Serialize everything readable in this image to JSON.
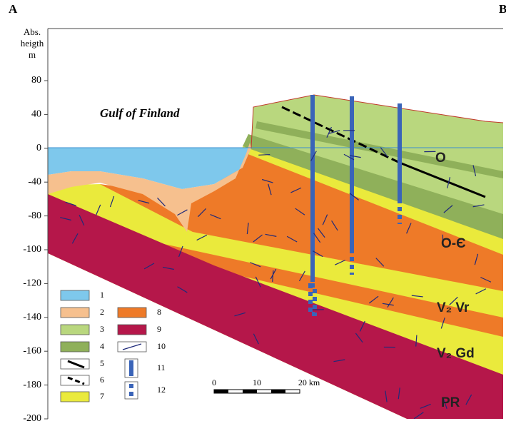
{
  "header": {
    "left": "A",
    "right": "B"
  },
  "axis": {
    "title": [
      "Abs.",
      "heigth",
      "m"
    ],
    "ticks": [
      80,
      40,
      0,
      -40,
      -80,
      -100,
      -120,
      -140,
      -160,
      -180,
      -200
    ]
  },
  "sea_label": "Gulf of Finland",
  "layer_labels": [
    "O",
    "O-Є",
    "V₂ Vr",
    "V₂ Gd",
    "PR"
  ],
  "legend": [
    "1",
    "2",
    "3",
    "4",
    "5",
    "6",
    "7",
    "8",
    "9",
    "10",
    "11",
    "12"
  ],
  "scale": [
    "0",
    "10",
    "20 km"
  ]
}
